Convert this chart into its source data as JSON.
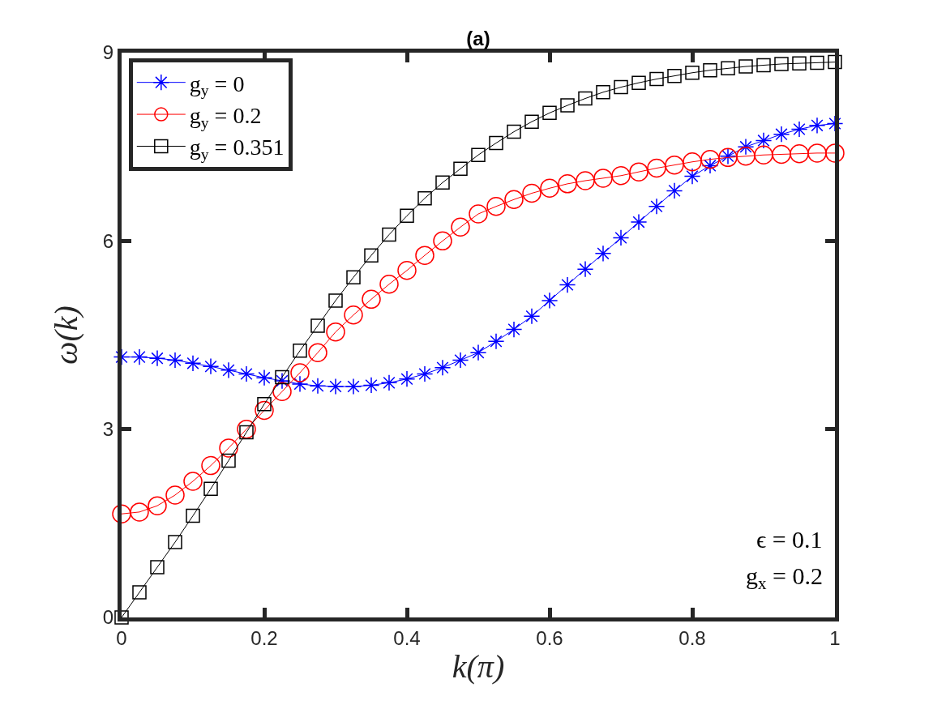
{
  "chart_data": {
    "type": "line",
    "title": "(a)",
    "xlabel": "k(π)",
    "ylabel": "ω(k)",
    "x": [
      0,
      0.025,
      0.05,
      0.075,
      0.1,
      0.125,
      0.15,
      0.175,
      0.2,
      0.225,
      0.25,
      0.275,
      0.3,
      0.325,
      0.35,
      0.375,
      0.4,
      0.425,
      0.45,
      0.475,
      0.5,
      0.525,
      0.55,
      0.575,
      0.6,
      0.625,
      0.65,
      0.675,
      0.7,
      0.725,
      0.75,
      0.775,
      0.8,
      0.825,
      0.85,
      0.875,
      0.9,
      0.925,
      0.95,
      0.975,
      1
    ],
    "series": [
      {
        "name": "g$_{y}$ = 0",
        "color": "#0000ff",
        "marker": "cross",
        "values": [
          4.15,
          4.15,
          4.13,
          4.1,
          4.05,
          4.0,
          3.94,
          3.88,
          3.82,
          3.77,
          3.72,
          3.69,
          3.68,
          3.68,
          3.7,
          3.74,
          3.8,
          3.88,
          3.98,
          4.1,
          4.22,
          4.4,
          4.59,
          4.8,
          5.05,
          5.3,
          5.55,
          5.8,
          6.05,
          6.3,
          6.55,
          6.8,
          7.03,
          7.2,
          7.35,
          7.5,
          7.6,
          7.7,
          7.78,
          7.84,
          7.87
        ]
      },
      {
        "name": "g$_{y}$ = 0.2",
        "color": "#ff0000",
        "marker": "circle",
        "values": [
          1.65,
          1.68,
          1.78,
          1.95,
          2.17,
          2.42,
          2.7,
          3.0,
          3.3,
          3.6,
          3.9,
          4.22,
          4.55,
          4.82,
          5.07,
          5.31,
          5.53,
          5.77,
          6.0,
          6.22,
          6.43,
          6.55,
          6.66,
          6.76,
          6.84,
          6.91,
          6.96,
          7.0,
          7.04,
          7.1,
          7.16,
          7.21,
          7.26,
          7.3,
          7.33,
          7.35,
          7.37,
          7.38,
          7.39,
          7.4,
          7.4
        ]
      },
      {
        "name": "g$_{y}$ = 0.351",
        "color": "#000000",
        "marker": "square",
        "values": [
          0,
          0.4,
          0.8,
          1.2,
          1.62,
          2.05,
          2.5,
          2.95,
          3.4,
          3.83,
          4.25,
          4.65,
          5.05,
          5.42,
          5.77,
          6.1,
          6.4,
          6.68,
          6.93,
          7.15,
          7.37,
          7.56,
          7.74,
          7.9,
          8.04,
          8.16,
          8.27,
          8.37,
          8.45,
          8.52,
          8.58,
          8.63,
          8.68,
          8.72,
          8.75,
          8.78,
          8.8,
          8.82,
          8.83,
          8.84,
          8.85
        ]
      }
    ],
    "xlim": [
      0,
      1
    ],
    "xticks": [
      0,
      0.2,
      0.4,
      0.6,
      0.8,
      1
    ],
    "ylim": [
      0,
      9
    ],
    "yticks": [
      0,
      3,
      6,
      9
    ],
    "grid": false,
    "legend": "top left",
    "line_style": "solid",
    "annotations": [
      "ϵ = 0.1",
      "g$_{x}$ = 0.2"
    ]
  }
}
